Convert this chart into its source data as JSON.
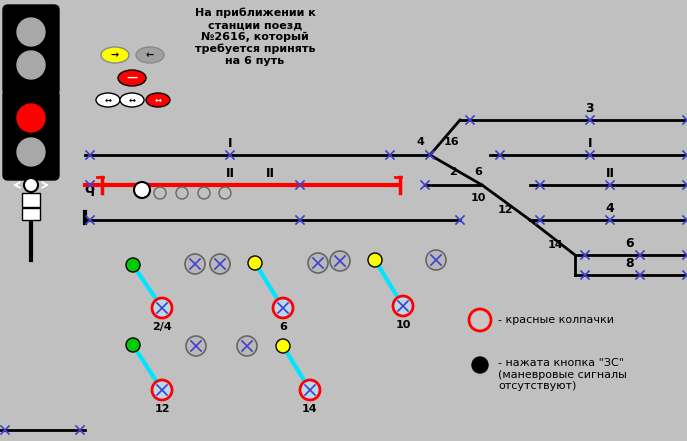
{
  "bg_color": "#c0c0c0",
  "title_text": "На приближении к\nстанции поезд\n№2616, который\nтребуется принять\nна 6 путь",
  "legend1_text": "- красные колпачки",
  "legend2_text": "- нажата кнопка \"ЗС\"\n(маневровые сигналы\nотсутствуют)",
  "track_color": "#000000",
  "red_track_color": "#ff0000",
  "switch_color": "#00e5ff",
  "xc": "#4040cc"
}
